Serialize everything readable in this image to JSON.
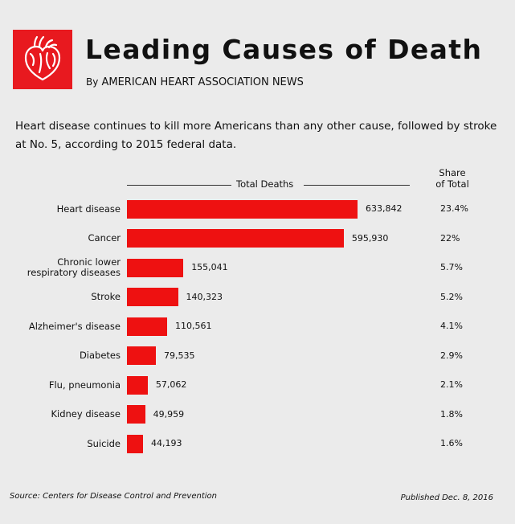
{
  "header": {
    "title": "Leading Causes of Death",
    "byline_prefix": "By",
    "byline_source": "AMERICAN HEART ASSOCIATION NEWS",
    "logo_icon": "heart-icon",
    "accent_color": "#e8191f"
  },
  "subtitle": "Heart disease continues to kill more Americans than any other cause, followed by stroke at No. 5, according to 2015 federal data.",
  "chart_data": {
    "type": "bar",
    "orientation": "horizontal",
    "title": "Leading Causes of Death",
    "xlabel": "Total Deaths",
    "share_header_line1": "Share",
    "share_header_line2": "of Total",
    "bar_color": "#ee1111",
    "xlim": [
      0,
      800000
    ],
    "categories": [
      [
        "Heart disease"
      ],
      [
        "Cancer"
      ],
      [
        "Chronic lower",
        "respiratory diseases"
      ],
      [
        "Stroke"
      ],
      [
        "Alzheimer's disease"
      ],
      [
        "Diabetes"
      ],
      [
        "Flu, pneumonia"
      ],
      [
        "Kidney disease"
      ],
      [
        "Suicide"
      ]
    ],
    "values": [
      633842,
      595930,
      155041,
      140323,
      110561,
      79535,
      57062,
      49959,
      44193
    ],
    "value_labels": [
      "633,842",
      "595,930",
      "155,041",
      "140,323",
      "110,561",
      "79,535",
      "57,062",
      "49,959",
      "44,193"
    ],
    "shares": [
      "23.4%",
      "22%",
      "5.7%",
      "5.2%",
      "4.1%",
      "2.9%",
      "2.1%",
      "1.8%",
      "1.6%"
    ]
  },
  "footer": {
    "source": "Source: Centers for Disease Control and Prevention",
    "published": "Published Dec. 8, 2016"
  }
}
